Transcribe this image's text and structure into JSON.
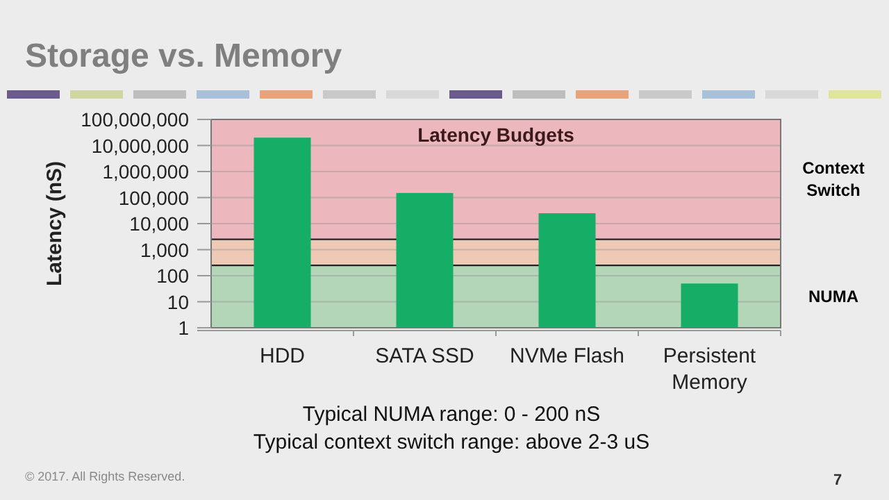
{
  "chart_data": {
    "type": "bar",
    "title": "Storage vs. Memory",
    "subtitle": "Latency Budgets",
    "ylabel": "Latency (nS)",
    "categories": [
      "HDD",
      "SATA SSD",
      "NVMe Flash",
      "Persistent Memory"
    ],
    "values": [
      20000000,
      150000,
      25000,
      50
    ],
    "color": "#16ad66",
    "log": true,
    "ylim": [
      1,
      100000000
    ],
    "yticks": [
      {
        "value": 1,
        "label": "1"
      },
      {
        "value": 10,
        "label": "10"
      },
      {
        "value": 100,
        "label": "100"
      },
      {
        "value": 1000,
        "label": "1,000"
      },
      {
        "value": 10000,
        "label": "10,000"
      },
      {
        "value": 100000,
        "label": "100,000"
      },
      {
        "value": 1000000,
        "label": "1,000,000"
      },
      {
        "value": 10000000,
        "label": "10,000,000"
      },
      {
        "value": 100000000,
        "label": "100,000,000"
      }
    ],
    "grid": "y",
    "ref_lines": [
      {
        "axis": "y",
        "value": 250,
        "color": "#222222"
      },
      {
        "axis": "y",
        "value": 2500,
        "color": "#222222"
      }
    ],
    "bands": [
      {
        "axis": "y",
        "from": 1,
        "to": 250,
        "label": "NUMA",
        "color": "#b3d5b8"
      },
      {
        "axis": "y",
        "from": 250,
        "to": 2500,
        "label": null,
        "color": "#eec9b5"
      },
      {
        "axis": "y",
        "from": 2500,
        "to": 100000000,
        "label": "Context Switch",
        "color": "#ecb7bd"
      }
    ],
    "annotations": [
      "Typical NUMA range: 0 - 200 nS",
      "Typical context switch range: above 2-3 uS",
      "© 2017. All Rights Reserved.",
      "7"
    ]
  }
}
